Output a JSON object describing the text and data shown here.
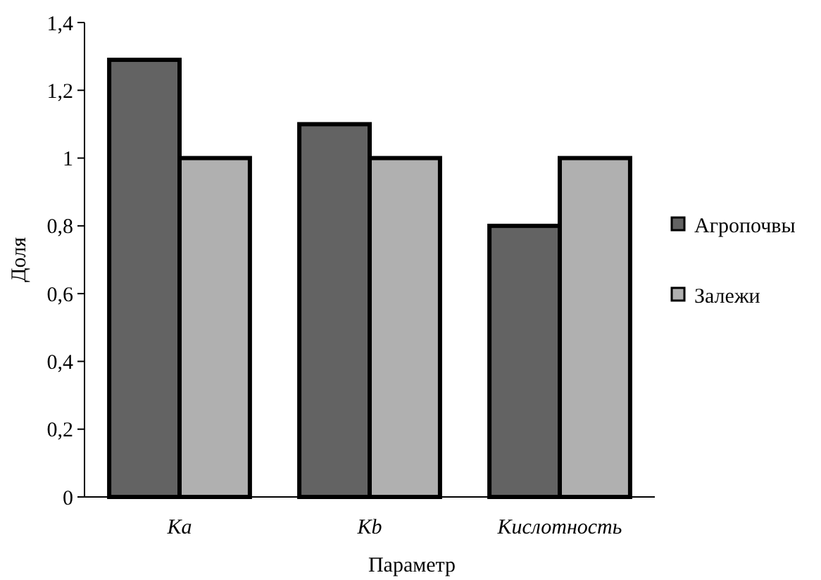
{
  "chart_data": {
    "type": "bar",
    "xlabel": "Параметр",
    "ylabel": "Доля",
    "categories": [
      "Ka",
      "Kb",
      "Кислотность"
    ],
    "series": [
      {
        "name": "Агропочвы",
        "color": "#636363",
        "values": [
          1.29,
          1.1,
          0.8
        ]
      },
      {
        "name": "Залежи",
        "color": "#b0b0b0",
        "values": [
          1,
          1,
          1
        ]
      }
    ],
    "ylim": [
      0,
      1.4
    ],
    "yticks": [
      0,
      {
        "value": 0.2,
        "label": "0,2"
      },
      {
        "value": 0.4,
        "label": "0,4"
      },
      {
        "value": 0.6,
        "label": "0,6"
      },
      {
        "value": 0.8,
        "label": "0,8"
      },
      1,
      {
        "value": 1.2,
        "label": "1,2"
      },
      {
        "value": 1.4,
        "label": "1,4"
      }
    ],
    "grid": false,
    "legend": "right"
  }
}
